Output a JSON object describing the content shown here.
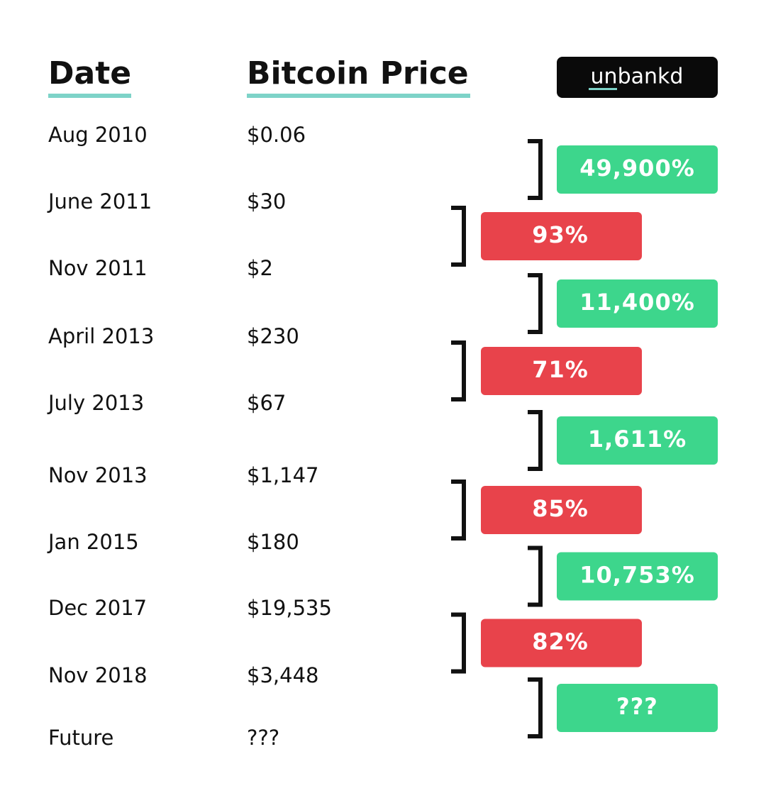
{
  "header": {
    "date_label": "Date",
    "price_label": "Bitcoin Price",
    "brand": "unbankd"
  },
  "rows": [
    {
      "date": "Aug 2010",
      "price": "$0.06"
    },
    {
      "date": "June 2011",
      "price": "$30"
    },
    {
      "date": "Nov 2011",
      "price": "$2"
    },
    {
      "date": "April 2013",
      "price": "$230"
    },
    {
      "date": "July 2013",
      "price": "$67"
    },
    {
      "date": "Nov 2013",
      "price": "$1,147"
    },
    {
      "date": "Jan 2015",
      "price": "$180"
    },
    {
      "date": "Dec 2017",
      "price": "$19,535"
    },
    {
      "date": "Nov 2018",
      "price": "$3,448"
    },
    {
      "date": "Future",
      "price": "???"
    }
  ],
  "changes": [
    {
      "label": "49,900%",
      "color": "#3dd68c"
    },
    {
      "label": "93%",
      "color": "#e8434b"
    },
    {
      "label": "11,400%",
      "color": "#3dd68c"
    },
    {
      "label": "71%",
      "color": "#e8434b"
    },
    {
      "label": "1,611%",
      "color": "#3dd68c"
    },
    {
      "label": "85%",
      "color": "#e8434b"
    },
    {
      "label": "10,753%",
      "color": "#3dd68c"
    },
    {
      "label": "82%",
      "color": "#e8434b"
    },
    {
      "label": "???",
      "color": "#3dd68c"
    }
  ]
}
